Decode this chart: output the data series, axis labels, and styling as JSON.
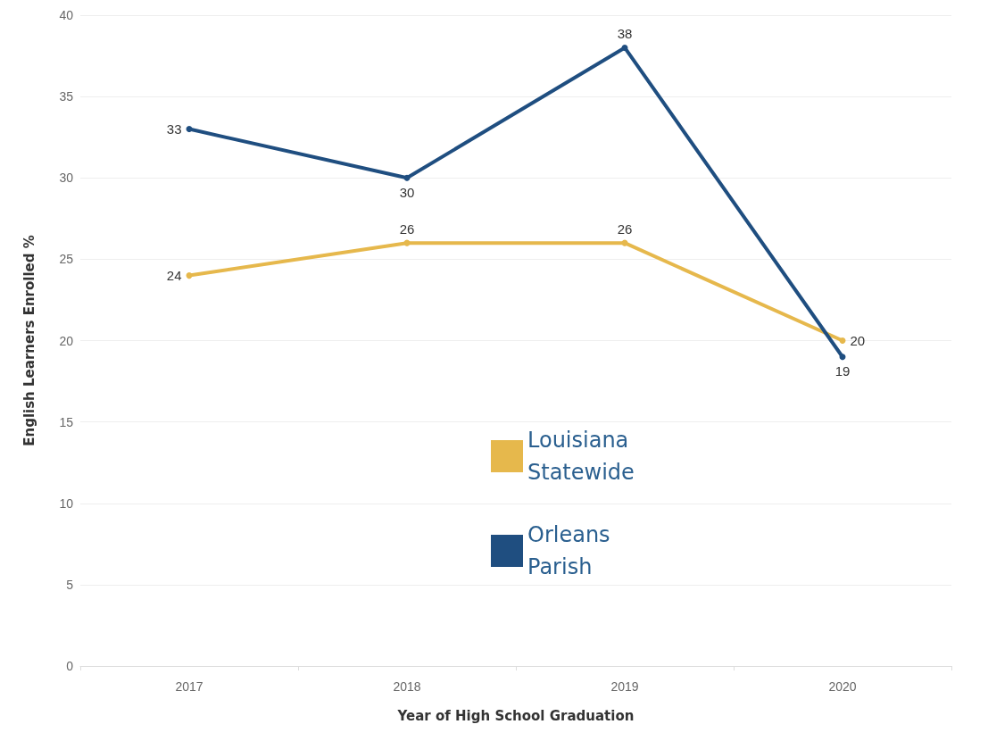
{
  "chart_data": {
    "type": "line",
    "xlabel": "Year of High School Graduation",
    "ylabel": "English Learners Enrolled %",
    "categories": [
      "2017",
      "2018",
      "2019",
      "2020"
    ],
    "series": [
      {
        "name": "Louisiana Statewide",
        "color": "#e6b84c",
        "values": [
          24,
          26,
          26,
          20
        ]
      },
      {
        "name": "Orleans Parish",
        "color": "#1f4e80",
        "values": [
          33,
          30,
          38,
          19
        ]
      }
    ],
    "ylim": [
      0,
      40
    ],
    "yticks": [
      0,
      5,
      10,
      15,
      20,
      25,
      30,
      35,
      40
    ],
    "grid": "y",
    "legend": "center",
    "marker": "circle",
    "line_style": "solid",
    "data_labels": true
  }
}
